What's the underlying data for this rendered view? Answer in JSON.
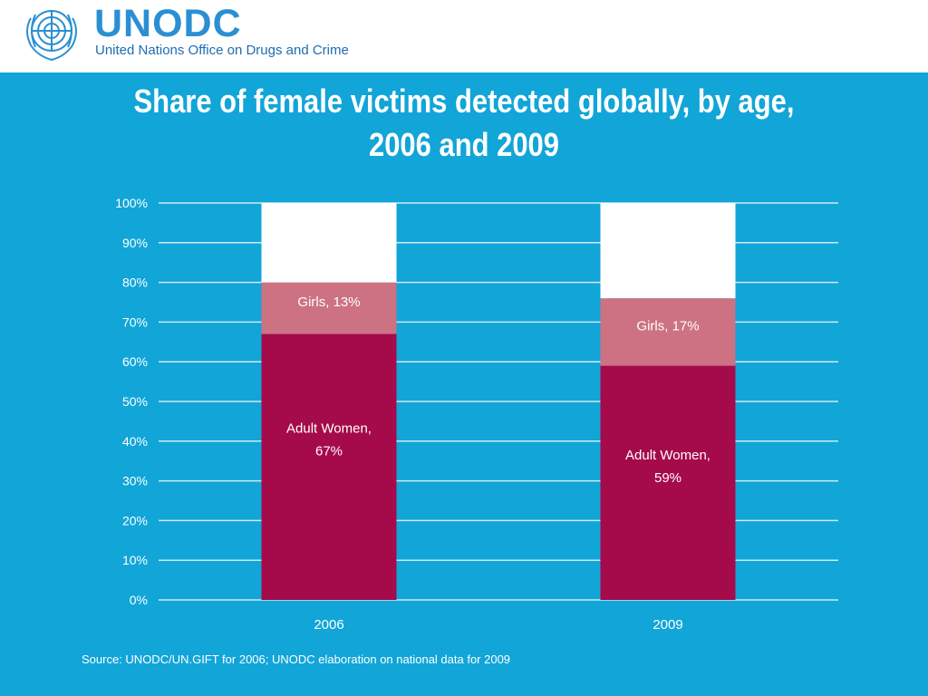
{
  "header": {
    "org_acronym": "UNODC",
    "org_name": "United Nations Office on Drugs and Crime",
    "emblem_icon": "un-emblem-icon",
    "emblem_color": "#2b8fd3"
  },
  "slide": {
    "title_line1": "Share of female victims detected globally, by age,",
    "title_line2": "2006 and 2009",
    "source": "Source: UNODC/UN.GIFT for 2006; UNODC elaboration on national data for 2009",
    "background_color": "#11a5d8"
  },
  "chart_data": {
    "type": "bar",
    "stacked": true,
    "categories": [
      "2006",
      "2009"
    ],
    "series": [
      {
        "name": "Adult Women",
        "values": [
          67,
          59
        ],
        "color": "#a50a4b",
        "labels": [
          [
            "Adult Women,",
            "67%"
          ],
          [
            "Adult Women,",
            "59%"
          ]
        ]
      },
      {
        "name": "Girls",
        "values": [
          13,
          17
        ],
        "color": "#cc7283",
        "labels": [
          [
            "Girls, 13%"
          ],
          [
            "Girls, 17%"
          ]
        ]
      },
      {
        "name": "",
        "values": [
          20,
          24
        ],
        "color": "#ffffff",
        "labels": [
          [],
          []
        ]
      }
    ],
    "yticks": [
      "0%",
      "10%",
      "20%",
      "30%",
      "40%",
      "50%",
      "60%",
      "70%",
      "80%",
      "90%",
      "100%"
    ],
    "ylim": [
      0,
      100
    ],
    "grid": true,
    "legend": "none"
  }
}
